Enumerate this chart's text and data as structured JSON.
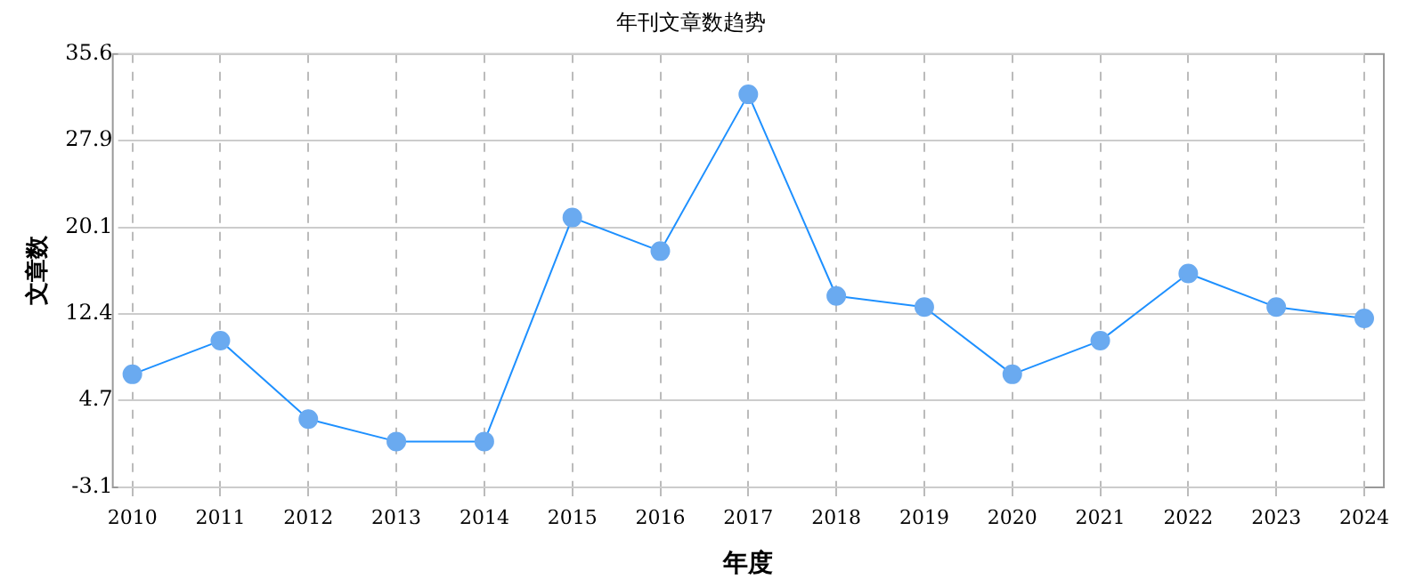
{
  "chart_data": {
    "type": "line",
    "title": "年刊文章数趋势",
    "xlabel": "年度",
    "ylabel": "文章数",
    "categories": [
      "2010",
      "2011",
      "2012",
      "2013",
      "2014",
      "2015",
      "2016",
      "2017",
      "2018",
      "2019",
      "2020",
      "2021",
      "2022",
      "2023",
      "2024"
    ],
    "series": [
      {
        "color": "#1e90ff",
        "values": [
          7,
          10,
          3,
          1,
          1,
          21,
          18,
          32,
          14,
          13,
          7,
          10,
          16,
          13,
          12
        ]
      }
    ],
    "ylim": [
      -3.1,
      35.6
    ],
    "yticks": [
      -3.1,
      4.7,
      12.4,
      20.1,
      27.9,
      35.6
    ],
    "grid": true,
    "legend": false,
    "marker": "circle",
    "line_style": "solid"
  }
}
